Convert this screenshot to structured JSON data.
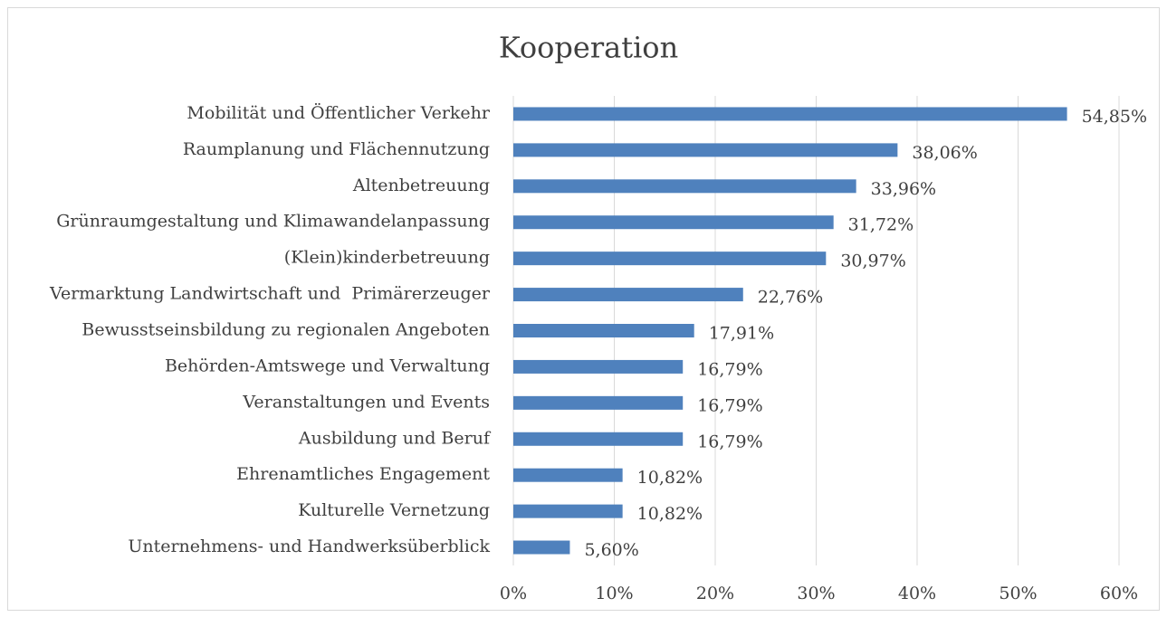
{
  "chart_data": {
    "type": "hbar",
    "title": "Kooperation",
    "categories": [
      "Mobilität und Öffentlicher Verkehr",
      "Raumplanung und Flächennutzung",
      "Altenbetreuung",
      "Grünraumgestaltung und Klimawandelanpassung",
      "(Klein)kinderbetreuung",
      "Vermarktung Landwirtschaft und  Primärerzeuger",
      "Bewusstseinsbildung zu regionalen Angeboten",
      "Behörden-Amtswege und Verwaltung",
      "Veranstaltungen und Events",
      "Ausbildung und Beruf",
      "Ehrenamtliches Engagement",
      "Kulturelle Vernetzung",
      "Unternehmens- und Handwerksüberblick"
    ],
    "values": [
      54.85,
      38.06,
      33.96,
      31.72,
      30.97,
      22.76,
      17.91,
      16.79,
      16.79,
      16.79,
      10.82,
      10.82,
      5.6
    ],
    "value_labels": [
      "54,85%",
      "38,06%",
      "33,96%",
      "31,72%",
      "30,97%",
      "22,76%",
      "17,91%",
      "16,79%",
      "16,79%",
      "16,79%",
      "10,82%",
      "10,82%",
      "5,60%"
    ],
    "color": "#4f81bd",
    "xlim": [
      0,
      60
    ],
    "xticks": [
      {
        "value": 0,
        "label": "0%"
      },
      {
        "value": 10,
        "label": "10%"
      },
      {
        "value": 20,
        "label": "20%"
      },
      {
        "value": 30,
        "label": "30%"
      },
      {
        "value": 40,
        "label": "40%"
      },
      {
        "value": 50,
        "label": "50%"
      },
      {
        "value": 60,
        "label": "60%"
      }
    ],
    "grid": true
  }
}
